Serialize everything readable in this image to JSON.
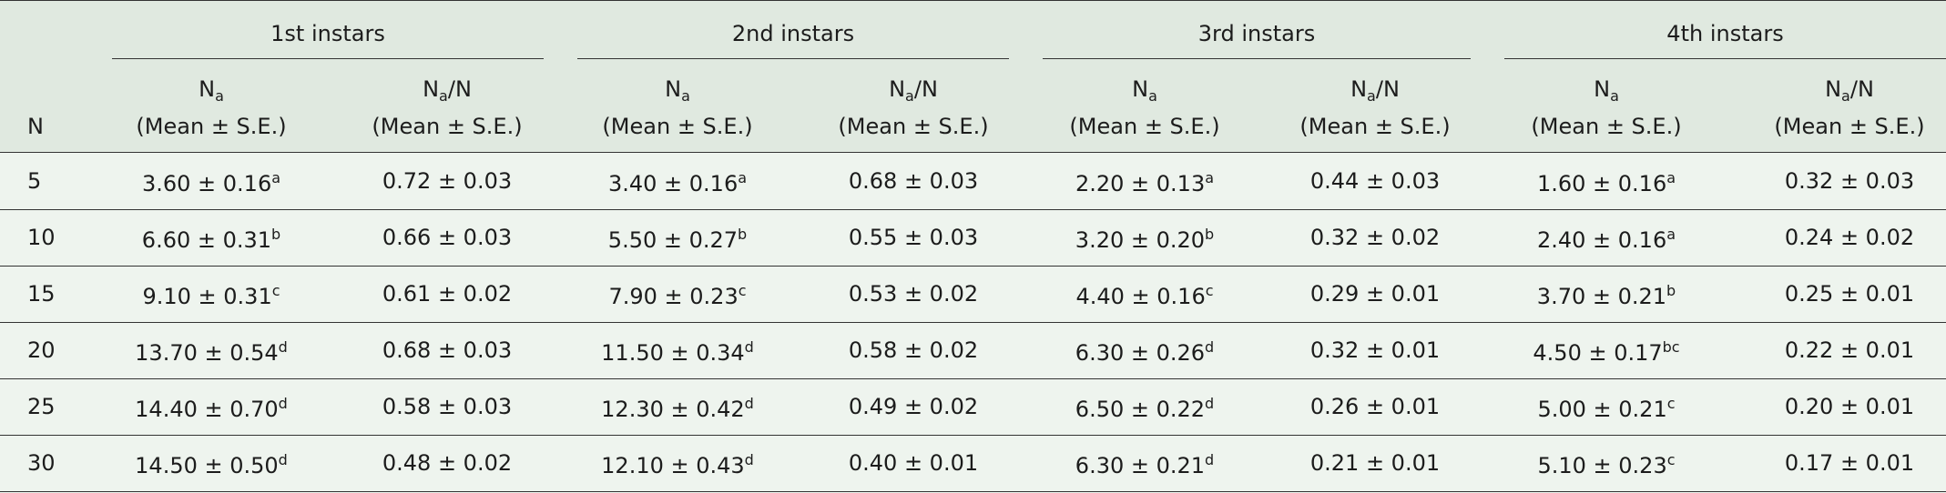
{
  "table": {
    "corner": "N",
    "groups": [
      "1st instars",
      "2nd instars",
      "3rd instars",
      "4th instars"
    ],
    "subheaders": [
      {
        "main": "N",
        "sub": "a",
        "rest": "",
        "line2": "(Mean ± S.E.)"
      },
      {
        "main": "N",
        "sub": "a",
        "rest": "/N",
        "line2": "(Mean ± S.E.)"
      },
      {
        "main": "N",
        "sub": "a",
        "rest": "",
        "line2": "(Mean ± S.E.)"
      },
      {
        "main": "N",
        "sub": "a",
        "rest": "/N",
        "line2": "(Mean ± S.E.)"
      },
      {
        "main": "N",
        "sub": "a",
        "rest": "",
        "line2": "(Mean ± S.E.)"
      },
      {
        "main": "N",
        "sub": "a",
        "rest": "/N",
        "line2": "(Mean ± S.E.)"
      },
      {
        "main": "N",
        "sub": "a",
        "rest": "",
        "line2": "(Mean ± S.E.)"
      },
      {
        "main": "N",
        "sub": "a",
        "rest": "/N",
        "line2": "(Mean ± S.E.)"
      }
    ],
    "rows": [
      {
        "n": 5,
        "cells": [
          {
            "v": "3.60 ± 0.16",
            "sup": "a"
          },
          {
            "v": "0.72 ± 0.03"
          },
          {
            "v": "3.40 ± 0.16",
            "sup": "a"
          },
          {
            "v": "0.68 ± 0.03"
          },
          {
            "v": "2.20 ± 0.13",
            "sup": "a"
          },
          {
            "v": "0.44 ± 0.03"
          },
          {
            "v": "1.60 ± 0.16",
            "sup": "a"
          },
          {
            "v": "0.32 ± 0.03"
          }
        ]
      },
      {
        "n": 10,
        "cells": [
          {
            "v": "6.60 ± 0.31",
            "sup": "b"
          },
          {
            "v": "0.66 ± 0.03"
          },
          {
            "v": "5.50 ± 0.27",
            "sup": "b"
          },
          {
            "v": "0.55 ± 0.03"
          },
          {
            "v": "3.20 ± 0.20",
            "sup": "b"
          },
          {
            "v": "0.32 ± 0.02"
          },
          {
            "v": "2.40 ± 0.16",
            "sup": "a"
          },
          {
            "v": "0.24 ± 0.02"
          }
        ]
      },
      {
        "n": 15,
        "cells": [
          {
            "v": "9.10 ± 0.31",
            "sup": "c"
          },
          {
            "v": "0.61 ± 0.02"
          },
          {
            "v": "7.90 ± 0.23",
            "sup": "c"
          },
          {
            "v": "0.53 ± 0.02"
          },
          {
            "v": "4.40 ± 0.16",
            "sup": "c"
          },
          {
            "v": "0.29 ± 0.01"
          },
          {
            "v": "3.70 ± 0.21",
            "sup": "b"
          },
          {
            "v": "0.25 ± 0.01"
          }
        ]
      },
      {
        "n": 20,
        "cells": [
          {
            "v": "13.70 ± 0.54",
            "sup": "d"
          },
          {
            "v": "0.68 ± 0.03"
          },
          {
            "v": "11.50 ± 0.34",
            "sup": "d"
          },
          {
            "v": "0.58 ± 0.02"
          },
          {
            "v": "6.30 ± 0.26",
            "sup": "d"
          },
          {
            "v": "0.32 ± 0.01"
          },
          {
            "v": "4.50 ± 0.17",
            "sup": "bc"
          },
          {
            "v": "0.22 ± 0.01"
          }
        ]
      },
      {
        "n": 25,
        "cells": [
          {
            "v": "14.40 ± 0.70",
            "sup": "d"
          },
          {
            "v": "0.58 ± 0.03"
          },
          {
            "v": "12.30 ± 0.42",
            "sup": "d"
          },
          {
            "v": "0.49 ± 0.02"
          },
          {
            "v": "6.50 ± 0.22",
            "sup": "d"
          },
          {
            "v": "0.26 ± 0.01"
          },
          {
            "v": "5.00 ± 0.21",
            "sup": "c"
          },
          {
            "v": "0.20 ± 0.01"
          }
        ]
      },
      {
        "n": 30,
        "cells": [
          {
            "v": "14.50 ± 0.50",
            "sup": "d"
          },
          {
            "v": "0.48 ± 0.02"
          },
          {
            "v": "12.10 ± 0.43",
            "sup": "d"
          },
          {
            "v": "0.40 ± 0.01"
          },
          {
            "v": "6.30 ± 0.21",
            "sup": "d"
          },
          {
            "v": "0.21 ± 0.01"
          },
          {
            "v": "5.10 ± 0.23",
            "sup": "c"
          },
          {
            "v": "0.17 ± 0.01"
          }
        ]
      }
    ]
  }
}
